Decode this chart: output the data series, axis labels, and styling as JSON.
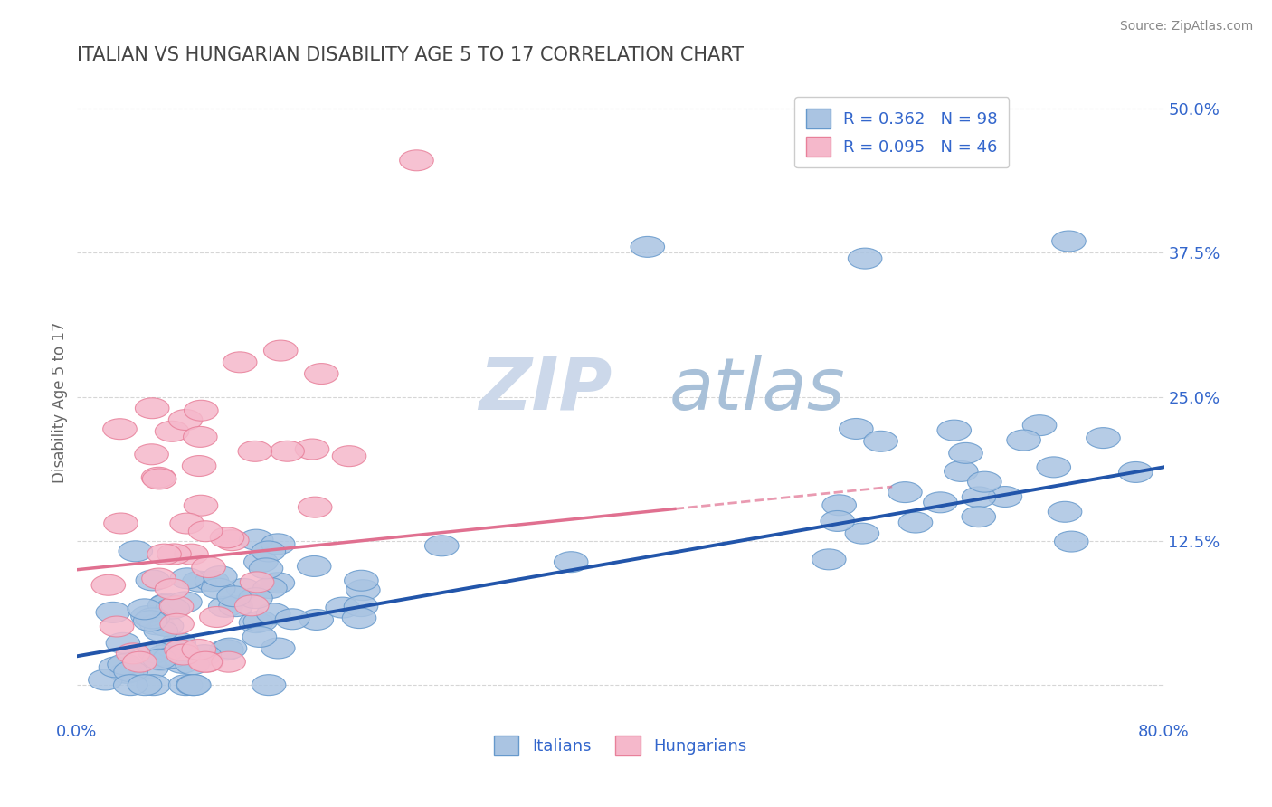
{
  "title": "ITALIAN VS HUNGARIAN DISABILITY AGE 5 TO 17 CORRELATION CHART",
  "source": "Source: ZipAtlas.com",
  "ylabel": "Disability Age 5 to 17",
  "xlim": [
    0.0,
    0.8
  ],
  "ylim": [
    -0.03,
    0.52
  ],
  "ylim_display": [
    0.0,
    0.5
  ],
  "italian_color": "#aac4e2",
  "italian_edge_color": "#6699cc",
  "hungarian_color": "#f5b8cb",
  "hungarian_edge_color": "#e8809a",
  "italian_line_color": "#2255aa",
  "hungarian_line_color": "#e07090",
  "R_italian": 0.362,
  "N_italian": 98,
  "R_hungarian": 0.095,
  "N_hungarian": 46,
  "watermark_color": "#d0dff0",
  "watermark_text_color": "#c0d0e8",
  "title_color": "#444444",
  "legend_text_color": "#3366cc",
  "axis_label_color": "#666666",
  "tick_color": "#3366cc",
  "background_color": "#ffffff",
  "grid_color": "#cccccc",
  "legend_box_italian": "#aac4e2",
  "legend_box_hungarian": "#f5b8cb"
}
